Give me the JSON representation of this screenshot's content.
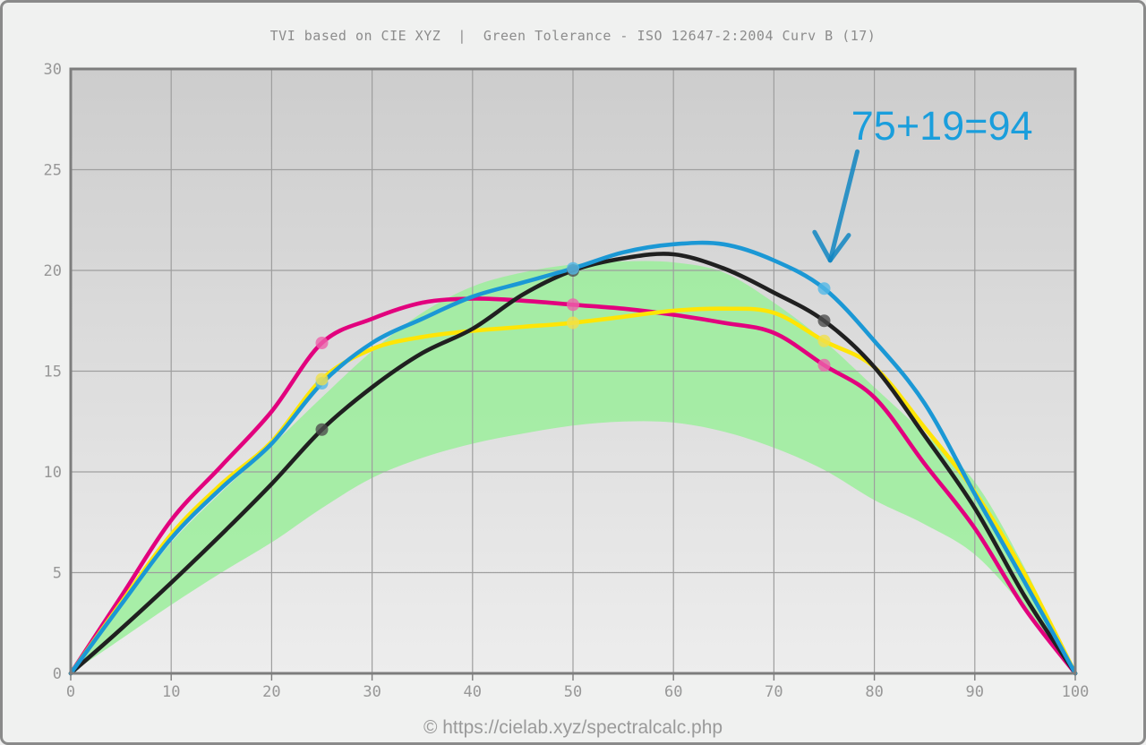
{
  "header": {
    "title": "TVI based on CIE XYZ  |  Green Tolerance - ISO 12647-2:2004 Curv B (17)"
  },
  "footer": {
    "text": "© https://cielab.xyz/spectralcalc.php"
  },
  "chart_data": {
    "type": "line",
    "title": "TVI based on CIE XYZ | Green Tolerance - ISO 12647-2:2004 Curv B (17)",
    "xlabel": "",
    "ylabel": "",
    "xlim": [
      0,
      100
    ],
    "ylim": [
      0,
      30
    ],
    "x_ticks": [
      0,
      10,
      20,
      30,
      40,
      50,
      60,
      70,
      80,
      90,
      100
    ],
    "y_ticks": [
      0,
      5,
      10,
      15,
      20,
      25,
      30
    ],
    "grid": true,
    "legend": "none",
    "x": [
      0,
      5,
      10,
      15,
      20,
      25,
      30,
      35,
      40,
      45,
      50,
      55,
      60,
      65,
      70,
      75,
      80,
      85,
      90,
      95,
      100
    ],
    "marker_x": [
      25,
      50,
      75
    ],
    "series": [
      {
        "name": "magenta",
        "color": "#e2017e",
        "dot_color": "#ee62ab",
        "values": [
          0,
          3.8,
          7.6,
          10.3,
          13.0,
          16.4,
          17.6,
          18.4,
          18.6,
          18.5,
          18.3,
          18.1,
          17.8,
          17.4,
          16.9,
          15.3,
          13.7,
          10.4,
          7.2,
          3.2,
          0
        ],
        "marker_values": [
          16.4,
          18.3,
          15.3
        ]
      },
      {
        "name": "yellow",
        "color": "#ffe505",
        "dot_color": "#f0e04e",
        "values": [
          0,
          3.5,
          6.9,
          9.4,
          11.5,
          14.6,
          16.1,
          16.7,
          17.0,
          17.2,
          17.4,
          17.7,
          18.0,
          18.1,
          17.9,
          16.5,
          15.2,
          12.2,
          9.0,
          4.9,
          0
        ],
        "marker_values": [
          14.6,
          17.4,
          16.5
        ]
      },
      {
        "name": "black",
        "color": "#202020",
        "dot_color": "#4d4d4d",
        "values": [
          0,
          2.2,
          4.5,
          6.9,
          9.4,
          12.1,
          14.2,
          15.9,
          17.1,
          18.8,
          20.0,
          20.6,
          20.8,
          20.1,
          18.9,
          17.5,
          15.2,
          11.8,
          8.2,
          3.8,
          0
        ],
        "marker_values": [
          12.1,
          20.0,
          17.5
        ]
      },
      {
        "name": "cyan",
        "color": "#1b98d5",
        "dot_color": "#54b8e6",
        "values": [
          0,
          3.4,
          6.7,
          9.2,
          11.4,
          14.4,
          16.4,
          17.6,
          18.7,
          19.4,
          20.1,
          20.9,
          21.3,
          21.3,
          20.5,
          19.1,
          16.5,
          13.4,
          8.9,
          4.5,
          0
        ],
        "marker_values": [
          14.4,
          20.1,
          19.1
        ]
      }
    ],
    "tolerance_band": {
      "label": "Green Tolerance ISO 12647-2:2004 Curve B",
      "color": "#9bee9b",
      "upper": [
        0,
        3.3,
        6.5,
        9.0,
        11.3,
        13.7,
        16.0,
        17.9,
        19.2,
        19.9,
        20.3,
        20.45,
        20.4,
        19.9,
        18.4,
        16.5,
        14.2,
        11.9,
        9.5,
        5.2,
        0
      ],
      "lower": [
        0,
        1.7,
        3.4,
        5.0,
        6.5,
        8.2,
        9.7,
        10.7,
        11.4,
        11.9,
        12.3,
        12.5,
        12.45,
        12.0,
        11.2,
        10.1,
        8.6,
        7.4,
        5.9,
        3.2,
        0
      ]
    },
    "annotation": {
      "text": "75+19=94",
      "color": "#1a9edc",
      "arrow_color": "#1186c2",
      "text_x": 77.7,
      "text_y": 26.5,
      "arrow": {
        "x1": 78.3,
        "y1": 25.9,
        "x2": 75.6,
        "y2": 20.5
      },
      "wings": [
        [
          74.05,
          21.9
        ],
        [
          77.45,
          21.75
        ]
      ],
      "target": {
        "series": "cyan",
        "x": 75,
        "value": 19.1
      }
    }
  },
  "style": {
    "plot_bg_top": "#cdcdcd",
    "plot_bg_bottom": "#ededed",
    "grid_color": "#9e9e9e",
    "border_color": "#7d7d7d",
    "page_bg": "#f0f1f0",
    "tick_color": "#979797"
  }
}
